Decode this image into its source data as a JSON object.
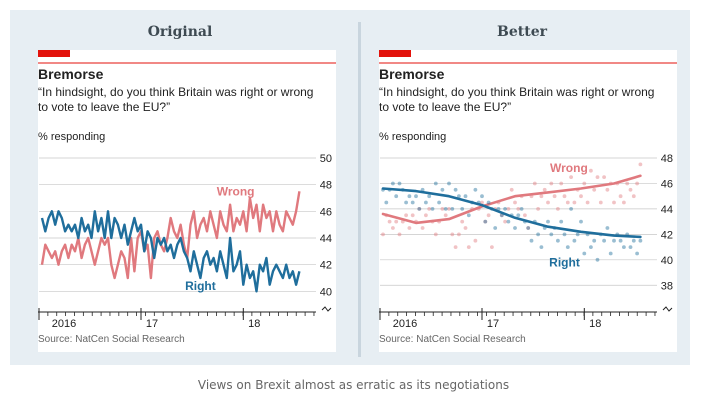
{
  "colors": {
    "frame_bg": "#e7eef3",
    "red": "#e3120b",
    "wrong": "#e0797e",
    "right": "#1f6e9c",
    "grid": "#c7c7c7",
    "text": "#222222",
    "muted": "#666666"
  },
  "panels": [
    {
      "heading": "Original"
    },
    {
      "heading": "Better"
    }
  ],
  "caption": "Views on Brexit almost as erratic as its negotiations",
  "chart_data": [
    {
      "type": "line",
      "title": "Bremorse",
      "subtitle_lines": [
        "“In hindsight, do you think Britain was right or wrong",
        "to vote to leave the EU?”"
      ],
      "ylabel": "% responding",
      "source": "Source: NatCen Social Research",
      "ylim": [
        39.5,
        50
      ],
      "yticks": [
        40,
        42,
        44,
        46,
        48,
        50
      ],
      "xlim": [
        0,
        24
      ],
      "xticks": [
        {
          "x": 2,
          "label": "2016"
        },
        {
          "x": 10,
          "label": "17"
        },
        {
          "x": 19.3,
          "label": "18"
        }
      ],
      "axis_break": true,
      "grid": true,
      "series": [
        {
          "name": "Wrong",
          "color": "#e0797e",
          "x": [
            0,
            0.3,
            0.6,
            0.9,
            1.2,
            1.5,
            1.8,
            2.1,
            2.4,
            2.7,
            3.0,
            3.3,
            3.6,
            3.9,
            4.2,
            4.5,
            4.8,
            5.1,
            5.4,
            5.7,
            6.0,
            6.3,
            6.6,
            6.9,
            7.2,
            7.5,
            7.8,
            8.1,
            8.4,
            8.7,
            9.0,
            9.3,
            9.6,
            9.9,
            10.2,
            10.5,
            10.8,
            11.1,
            11.4,
            11.7,
            12.0,
            12.3,
            12.6,
            12.9,
            13.2,
            13.5,
            13.8,
            14.1,
            14.4,
            14.7,
            15.0,
            15.3,
            15.6,
            15.9,
            16.2,
            16.5,
            16.8,
            17.1,
            17.4,
            17.7,
            18.0,
            18.3,
            18.6,
            18.9,
            19.2,
            19.5,
            19.8,
            20.1,
            20.4,
            20.7,
            21.0,
            21.3,
            21.6,
            21.9,
            22.2,
            22.5,
            22.8,
            23.1,
            23.4
          ],
          "values": [
            42,
            43.5,
            43,
            42.5,
            43,
            42,
            43,
            43.5,
            42.5,
            43.5,
            43,
            44,
            42.5,
            43.5,
            44,
            43,
            42,
            43,
            44,
            43.5,
            44,
            42,
            41,
            42,
            43,
            42.5,
            41,
            44,
            41.5,
            44,
            44.5,
            43,
            43.5,
            41,
            44,
            44.5,
            43.5,
            43,
            44,
            45.5,
            44.5,
            44,
            45,
            43.5,
            42.5,
            45,
            46,
            44,
            45,
            45.5,
            44.5,
            46,
            45,
            44,
            46,
            45,
            44.5,
            46.5,
            44.5,
            45.5,
            45,
            46,
            44.5,
            47,
            45.5,
            46.5,
            44.5,
            46.5,
            45.5,
            46,
            44.5,
            46,
            45,
            44.5,
            46,
            45.5,
            45,
            46,
            47.5
          ]
        },
        {
          "name": "Right",
          "color": "#1f6e9c",
          "x": [
            0,
            0.3,
            0.6,
            0.9,
            1.2,
            1.5,
            1.8,
            2.1,
            2.4,
            2.7,
            3.0,
            3.3,
            3.6,
            3.9,
            4.2,
            4.5,
            4.8,
            5.1,
            5.4,
            5.7,
            6.0,
            6.3,
            6.6,
            6.9,
            7.2,
            7.5,
            7.8,
            8.1,
            8.4,
            8.7,
            9.0,
            9.3,
            9.6,
            9.9,
            10.2,
            10.5,
            10.8,
            11.1,
            11.4,
            11.7,
            12.0,
            12.3,
            12.6,
            12.9,
            13.2,
            13.5,
            13.8,
            14.1,
            14.4,
            14.7,
            15.0,
            15.3,
            15.6,
            15.9,
            16.2,
            16.5,
            16.8,
            17.1,
            17.4,
            17.7,
            18.0,
            18.3,
            18.6,
            18.9,
            19.2,
            19.5,
            19.8,
            20.1,
            20.4,
            20.7,
            21.0,
            21.3,
            21.6,
            21.9,
            22.2,
            22.5,
            22.8,
            23.1,
            23.4
          ],
          "values": [
            45.5,
            44.5,
            45.5,
            46,
            45,
            46,
            45.5,
            44.5,
            45,
            44.5,
            45,
            44,
            45.5,
            44.5,
            45,
            44,
            46,
            44.5,
            45.5,
            44,
            46,
            44,
            45.5,
            45,
            44,
            45,
            43.5,
            44.5,
            45.5,
            44.5,
            45,
            43,
            44.5,
            44,
            42.5,
            44,
            43.5,
            44,
            43,
            43.5,
            42.5,
            43.5,
            44,
            43,
            42.5,
            41.5,
            43,
            42,
            41,
            42.5,
            43,
            42,
            42.5,
            41.5,
            43,
            42,
            41,
            44,
            41.5,
            42,
            43,
            40.5,
            42,
            41,
            41.5,
            40,
            42,
            41.5,
            42.5,
            40.5,
            41.5,
            42,
            41.5,
            41,
            42,
            41,
            41.5,
            40.5,
            41.5
          ]
        }
      ],
      "annotations": [
        {
          "text": "Wrong",
          "series": "Wrong",
          "x": 17.6,
          "y": 47.5
        },
        {
          "text": "Right",
          "series": "Right",
          "x": 14.4,
          "y": 40.4
        }
      ]
    },
    {
      "type": "scatter",
      "title": "Bremorse",
      "subtitle_lines": [
        "“In hindsight, do you think Britain was right or wrong",
        "to vote to leave the EU?”"
      ],
      "ylabel": "% responding",
      "source": "Source: NatCen Social Research",
      "ylim": [
        37,
        48
      ],
      "yticks": [
        38,
        40,
        42,
        44,
        46,
        48
      ],
      "xlim": [
        0,
        24
      ],
      "xticks": [
        {
          "x": 2,
          "label": "2016"
        },
        {
          "x": 10,
          "label": "17"
        },
        {
          "x": 19.3,
          "label": "18"
        }
      ],
      "axis_break": true,
      "grid": true,
      "series": [
        {
          "name": "Wrong",
          "color": "#e0797e",
          "x": [
            0,
            0.3,
            0.6,
            0.9,
            1.2,
            1.5,
            1.8,
            2.1,
            2.4,
            2.7,
            3.0,
            3.3,
            3.6,
            3.9,
            4.2,
            4.5,
            4.8,
            5.1,
            5.4,
            5.7,
            6.0,
            6.3,
            6.6,
            6.9,
            7.2,
            7.5,
            7.8,
            8.1,
            8.4,
            8.7,
            9.0,
            9.3,
            9.6,
            9.9,
            10.2,
            10.5,
            10.8,
            11.1,
            11.4,
            11.7,
            12.0,
            12.3,
            12.6,
            12.9,
            13.2,
            13.5,
            13.8,
            14.1,
            14.4,
            14.7,
            15.0,
            15.3,
            15.6,
            15.9,
            16.2,
            16.5,
            16.8,
            17.1,
            17.4,
            17.7,
            18.0,
            18.3,
            18.6,
            18.9,
            19.2,
            19.5,
            19.8,
            20.1,
            20.4,
            20.7,
            21.0,
            21.3,
            21.6,
            21.9,
            22.2,
            22.5,
            22.8,
            23.1,
            23.4
          ],
          "values": [
            42,
            43.5,
            43,
            42.5,
            43,
            42,
            43,
            43.5,
            42.5,
            43.5,
            43,
            44,
            42.5,
            43.5,
            44,
            43,
            42,
            43,
            44,
            43.5,
            44,
            42,
            41,
            42,
            43,
            42.5,
            41,
            44,
            41.5,
            44,
            44.5,
            43,
            43.5,
            41,
            44,
            44.5,
            43.5,
            43,
            44,
            45.5,
            44.5,
            44,
            45,
            43.5,
            42.5,
            45,
            46,
            44,
            45,
            45.5,
            44.5,
            46,
            45,
            44,
            46,
            45,
            44.5,
            46.5,
            44.5,
            45.5,
            45,
            46,
            44.5,
            47,
            45.5,
            46.5,
            44.5,
            46.5,
            45.5,
            46,
            44.5,
            46,
            45,
            44.5,
            46,
            45.5,
            45,
            46,
            47.5
          ],
          "trend_x": [
            0,
            3,
            6,
            9,
            12,
            15,
            18,
            21,
            23.4
          ],
          "trend": [
            43.6,
            42.9,
            43.2,
            44.2,
            45.0,
            45.3,
            45.6,
            46.0,
            46.6
          ]
        },
        {
          "name": "Right",
          "color": "#1f6e9c",
          "x": [
            0,
            0.3,
            0.6,
            0.9,
            1.2,
            1.5,
            1.8,
            2.1,
            2.4,
            2.7,
            3.0,
            3.3,
            3.6,
            3.9,
            4.2,
            4.5,
            4.8,
            5.1,
            5.4,
            5.7,
            6.0,
            6.3,
            6.6,
            6.9,
            7.2,
            7.5,
            7.8,
            8.1,
            8.4,
            8.7,
            9.0,
            9.3,
            9.6,
            9.9,
            10.2,
            10.5,
            10.8,
            11.1,
            11.4,
            11.7,
            12.0,
            12.3,
            12.6,
            12.9,
            13.2,
            13.5,
            13.8,
            14.1,
            14.4,
            14.7,
            15.0,
            15.3,
            15.6,
            15.9,
            16.2,
            16.5,
            16.8,
            17.1,
            17.4,
            17.7,
            18.0,
            18.3,
            18.6,
            18.9,
            19.2,
            19.5,
            19.8,
            20.1,
            20.4,
            20.7,
            21.0,
            21.3,
            21.6,
            21.9,
            22.2,
            22.5,
            22.8,
            23.1,
            23.4
          ],
          "values": [
            45.5,
            44.5,
            45.5,
            46,
            45,
            46,
            45.5,
            44.5,
            45,
            44.5,
            45,
            44,
            45.5,
            44.5,
            45,
            44,
            46,
            44.5,
            45.5,
            44,
            46,
            44,
            45.5,
            45,
            44,
            45,
            43.5,
            44.5,
            45.5,
            44.5,
            45,
            43,
            44.5,
            44,
            42.5,
            44,
            43.5,
            44,
            43,
            43.5,
            42.5,
            43.5,
            44,
            43,
            42.5,
            41.5,
            43,
            42,
            41,
            42.5,
            43,
            42,
            42.5,
            41.5,
            43,
            42,
            41,
            44,
            41.5,
            42,
            43,
            40.5,
            42,
            41,
            41.5,
            40,
            42,
            41.5,
            42.5,
            40.5,
            41.5,
            42,
            41.5,
            41,
            42,
            41,
            41.5,
            40.5,
            41.5
          ],
          "trend_x": [
            0,
            3,
            6,
            9,
            12,
            15,
            18,
            21,
            23.4
          ],
          "trend": [
            45.6,
            45.4,
            45.0,
            44.3,
            43.3,
            42.6,
            42.2,
            41.9,
            41.8
          ]
        }
      ],
      "annotations": [
        {
          "text": "Wrong",
          "series": "Wrong",
          "x": 16.9,
          "y": 47.2
        },
        {
          "text": "Right",
          "series": "Right",
          "x": 16.5,
          "y": 39.8
        }
      ]
    }
  ]
}
